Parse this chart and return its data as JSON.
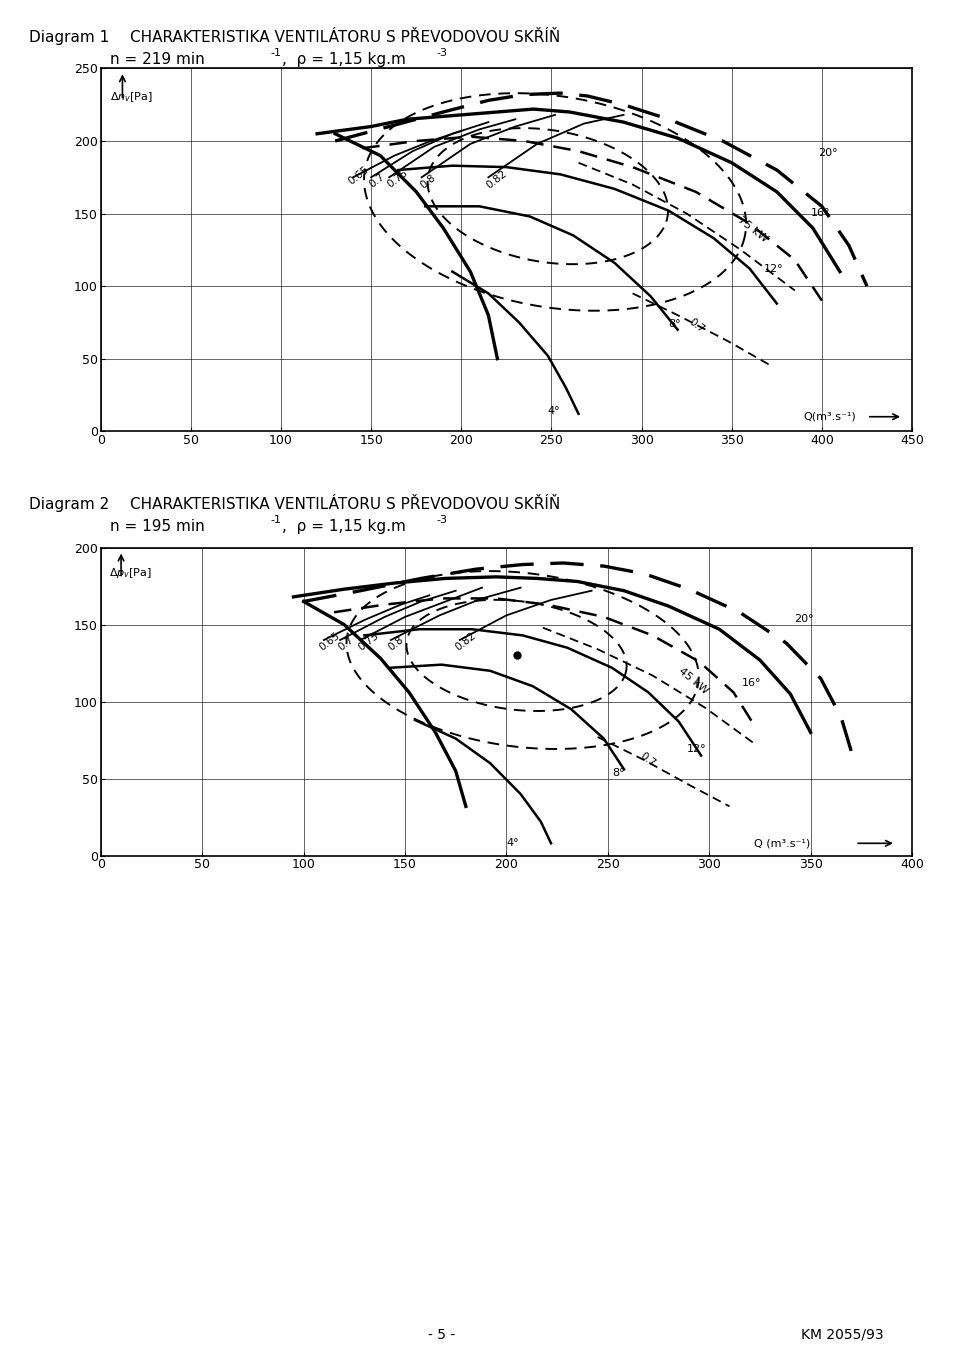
{
  "title1_a": "Diagram 1",
  "title1_b": "CHARAKTERISTIKA VENTILÁTORU S PŘEVODOVOU SKŘÍŇ",
  "subtitle1": "n = 219 min",
  "subtitle1_sup": "-1",
  "subtitle1_b": " ,  ρ = 1,15 kg.m",
  "subtitle1_sup2": "-3",
  "title2_a": "Diagram 2",
  "title2_b": "CHARAKTERISTIKA VENTILÁTORU S PŘEVODOVOU SKŘÍŇ",
  "subtitle2": "n = 195 min",
  "subtitle2_sup": "-1",
  "subtitle2_b": " ,  ρ = 1,15 kg.m",
  "subtitle2_sup2": "-3",
  "footer_left": "- 5 -",
  "footer_right": "KM 2055/93",
  "bg_color": "#ffffff"
}
